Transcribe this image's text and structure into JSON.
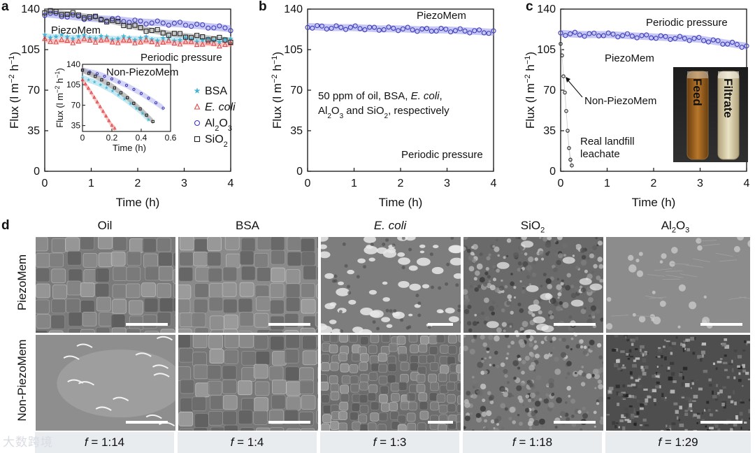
{
  "chart_data": [
    {
      "panel": "a",
      "type": "scatter",
      "xlabel": "Time (h)",
      "ylabel": "Flux (l m−2 h−1)",
      "xlim": [
        0,
        4
      ],
      "ylim": [
        0,
        140
      ],
      "xticks": [
        "0",
        "1",
        "2",
        "3",
        "4"
      ],
      "yticks": [
        "0",
        "35",
        "70",
        "105",
        "140"
      ],
      "annotations": [
        "PiezoMem",
        "Periodic pressure"
      ],
      "legend": [
        "BSA",
        "E. coli",
        "Al2O3",
        "SiO2"
      ],
      "series": [
        {
          "name": "BSA",
          "marker": "star",
          "color": "#45b4d4",
          "x": [
            0.0,
            0.5,
            1.0,
            1.5,
            2.0,
            2.5,
            3.0,
            3.5,
            4.0
          ],
          "y": [
            117,
            116,
            116,
            115,
            115,
            114,
            114,
            113,
            113
          ]
        },
        {
          "name": "E. coli",
          "marker": "triangle",
          "color": "#e04848",
          "x": [
            0.0,
            0.5,
            1.0,
            1.5,
            2.0,
            2.5,
            3.0,
            3.5,
            4.0
          ],
          "y": [
            113,
            112,
            113,
            112,
            112,
            111,
            111,
            110,
            109
          ]
        },
        {
          "name": "Al2O3",
          "marker": "circle",
          "color": "#3a3ab8",
          "x": [
            0.0,
            0.5,
            1.0,
            1.5,
            2.0,
            2.5,
            3.0,
            3.5,
            4.0
          ],
          "y": [
            136,
            134,
            132,
            131,
            129,
            128,
            127,
            125,
            123
          ]
        },
        {
          "name": "SiO2",
          "marker": "square",
          "color": "#222222",
          "x": [
            0.0,
            0.5,
            1.0,
            1.5,
            2.0,
            2.5,
            3.0,
            3.5,
            4.0
          ],
          "y": [
            138,
            136,
            133,
            129,
            124,
            120,
            117,
            115,
            113
          ]
        }
      ],
      "inset": {
        "xlabel": "Time (h)",
        "ylabel": "Flux (l m−2 h−1)",
        "title": "Non-PiezoMem",
        "xlim": [
          0,
          0.6
        ],
        "ylim": [
          25,
          140
        ],
        "xticks": [
          "0",
          "0.2",
          "0.4",
          "0.6"
        ],
        "yticks": [
          "35",
          "70",
          "105",
          "140"
        ],
        "series": [
          {
            "name": "BSA",
            "x": [
              0.0,
              0.1,
              0.2,
              0.3,
              0.4,
              0.45
            ],
            "y": [
              117,
              108,
              95,
              78,
              58,
              45
            ]
          },
          {
            "name": "E. coli",
            "x": [
              0.0,
              0.05,
              0.1,
              0.15,
              0.2,
              0.22
            ],
            "y": [
              113,
              95,
              75,
              55,
              35,
              30
            ]
          },
          {
            "name": "Al2O3",
            "x": [
              0.0,
              0.1,
              0.2,
              0.3,
              0.4,
              0.5,
              0.55
            ],
            "y": [
              130,
              124,
              115,
              104,
              90,
              74,
              65
            ]
          },
          {
            "name": "SiO2",
            "x": [
              0.0,
              0.1,
              0.2,
              0.3,
              0.4,
              0.48
            ],
            "y": [
              130,
              118,
              103,
              84,
              62,
              42
            ]
          }
        ]
      }
    },
    {
      "panel": "b",
      "type": "scatter",
      "xlabel": "Time (h)",
      "ylabel": "Flux (l m−2 h−1)",
      "xlim": [
        0,
        4
      ],
      "ylim": [
        0,
        140
      ],
      "xticks": [
        "0",
        "1",
        "2",
        "3",
        "4"
      ],
      "yticks": [
        "0",
        "35",
        "70",
        "105",
        "140"
      ],
      "annotations": [
        "PiezoMem",
        "50 ppm of oil, BSA, E. coli,",
        "Al2O3 and SiO2, respectively",
        "Periodic pressure"
      ],
      "series": [
        {
          "name": "PiezoMem",
          "color": "#3a3ab8",
          "x": [
            0.0,
            0.5,
            1.0,
            1.5,
            2.0,
            2.5,
            3.0,
            3.5,
            4.0
          ],
          "y": [
            125,
            124,
            124,
            123,
            123,
            122,
            122,
            121,
            120
          ]
        }
      ]
    },
    {
      "panel": "c",
      "type": "scatter",
      "xlabel": "Time (h)",
      "ylabel": "Flux (l m−2 h−1)",
      "xlim": [
        0,
        4
      ],
      "ylim": [
        0,
        140
      ],
      "xticks": [
        "0",
        "1",
        "2",
        "3",
        "4"
      ],
      "yticks": [
        "0",
        "35",
        "70",
        "105",
        "140"
      ],
      "annotations": [
        "Periodic pressure",
        "PiezoMem",
        "Non-PiezoMem",
        "Real landfill",
        "leachate"
      ],
      "series": [
        {
          "name": "PiezoMem",
          "color": "#3a3ab8",
          "x": [
            0.0,
            0.5,
            1.0,
            1.5,
            2.0,
            2.5,
            3.0,
            3.5,
            4.0
          ],
          "y": [
            119,
            118,
            118,
            117,
            116,
            115,
            114,
            111,
            108
          ]
        },
        {
          "name": "Non-PiezoMem",
          "color": "#222222",
          "x": [
            0.0,
            0.03,
            0.06,
            0.09,
            0.12,
            0.15,
            0.18,
            0.21,
            0.24
          ],
          "y": [
            110,
            100,
            82,
            68,
            52,
            35,
            20,
            10,
            5
          ]
        }
      ],
      "photo_labels": [
        "Feed",
        "Filtrate"
      ]
    }
  ],
  "panel_letters": {
    "a": "a",
    "b": "b",
    "c": "c",
    "d": "d"
  },
  "sem_grid": {
    "columns": [
      "Oil",
      "BSA",
      "E. coli",
      "SiO2",
      "Al2O3"
    ],
    "rows": [
      "PiezoMem",
      "Non-PiezoMem"
    ],
    "ratios": [
      "1:14",
      "1:4",
      "1:3",
      "1:18",
      "1:29"
    ],
    "ratio_symbol": "f",
    "ratio_eq": "="
  },
  "watermark": "大数跨境",
  "colors": {
    "blue_band": "#a9a9f0",
    "blue_marker": "#3a3ab8",
    "red": "#e04848",
    "cyan": "#45b4d4",
    "sem_bg": "#8d8d8d",
    "f_bar": "#e8ecef"
  }
}
